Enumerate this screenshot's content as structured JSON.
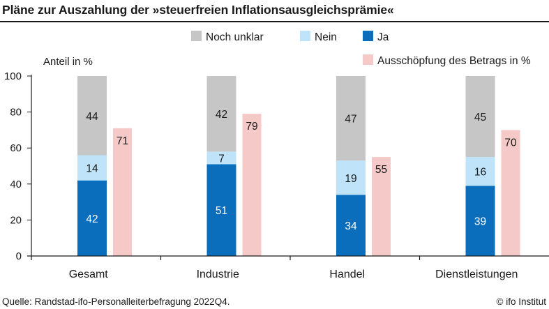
{
  "header": {
    "title": "Pläne zur Auszahlung der »steuerfreien Inflationsausgleichsprämie«"
  },
  "footer": {
    "source": "Quelle: Randstad-ifo-Personalleiterbefragung 2022Q4.",
    "copyright": "© ifo Institut"
  },
  "chart_data": {
    "type": "bar",
    "title": "Pläne zur Auszahlung der »steuerfreien Inflationsausgleichsprämie«",
    "ylabel": "Anteil in %",
    "xlabel": "",
    "ylim": [
      0,
      100
    ],
    "yticks": [
      0,
      20,
      40,
      60,
      80,
      100
    ],
    "grid": false,
    "legend_position": "top",
    "categories": [
      "Gesamt",
      "Industrie",
      "Handel",
      "Dienstleistungen"
    ],
    "stacked_series": [
      {
        "name": "Ja",
        "values": [
          42,
          51,
          34,
          39
        ],
        "color": "#0a6ebd",
        "label_color": "#ffffff"
      },
      {
        "name": "Nein",
        "values": [
          14,
          7,
          19,
          16
        ],
        "color": "#bfe4fa",
        "label_color": "#1a1a1a"
      },
      {
        "name": "Noch unklar",
        "values": [
          44,
          42,
          47,
          45
        ],
        "color": "#c6c6c6",
        "label_color": "#1a1a1a"
      }
    ],
    "side_series": {
      "name": "Ausschöpfung des Betrags in %",
      "values": [
        71,
        79,
        55,
        70
      ],
      "color": "#f6c9c9",
      "label_color": "#1a1a1a"
    },
    "legend": [
      {
        "name": "Noch unklar",
        "color": "#c6c6c6"
      },
      {
        "name": "Nein",
        "color": "#bfe4fa"
      },
      {
        "name": "Ja",
        "color": "#0a6ebd"
      },
      {
        "name": "Ausschöpfung des Betrags in %",
        "color": "#f6c9c9"
      }
    ],
    "axis_color": "#1a1a1a"
  }
}
